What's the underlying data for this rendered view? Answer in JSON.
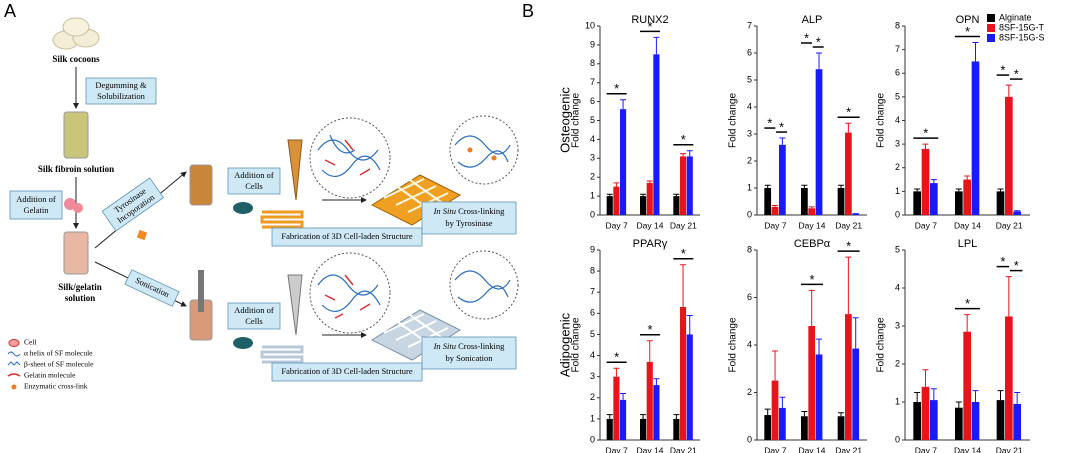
{
  "panel_a": {
    "label": "A",
    "cocoons": "Silk cocoons",
    "step_degum": [
      "Degumming &",
      "Solubilization"
    ],
    "fibroin": "Silk fibroin solution",
    "step_gelatin": [
      "Addition of",
      "Gelatin"
    ],
    "step_tyrosinase": [
      "Tyrosinase",
      "Incoporation"
    ],
    "silk_gelatin": [
      "Silk/gelatin",
      "solution"
    ],
    "step_sonication": "Sonication",
    "top_branch": {
      "add_cells": [
        "Addition of",
        "Cells"
      ],
      "fabrication": "Fabrication of 3D Cell-laden Structure",
      "crosslink_italic": "In Situ",
      "crosslink": "Cross-linking",
      "crosslink_by": "by Tyrosinase"
    },
    "bottom_branch": {
      "add_cells": [
        "Addition of",
        "Cells"
      ],
      "fabrication": "Fabrication of 3D Cell-laden Structure",
      "crosslink_italic": "In Situ",
      "crosslink": "Cross-linking",
      "crosslink_by": "by Sonication"
    },
    "legend": [
      "Cell",
      "α helix of SF molecule",
      "β-sheet of SF molecule",
      "Gelatin molecule",
      "Enzymatic cross-link"
    ]
  },
  "panel_b": {
    "label": "B",
    "row_labels": [
      "Osteogenic",
      "Adipogenic"
    ]
  },
  "chart_data": [
    {
      "type": "bar",
      "title": "RUNX2",
      "ylabel": "Fold change",
      "categories": [
        "Day 7",
        "Day 14",
        "Day 21"
      ],
      "ylim": [
        0,
        10
      ],
      "yticks": [
        0,
        1,
        2,
        3,
        4,
        5,
        6,
        7,
        8,
        9,
        10
      ],
      "series": [
        {
          "name": "Alginate",
          "color": "#000000",
          "values": [
            1,
            1,
            1
          ],
          "errors": [
            0.1,
            0.1,
            0.1
          ]
        },
        {
          "name": "8SF-15G-T",
          "color": "#e8141b",
          "values": [
            1.5,
            1.7,
            3.1
          ],
          "errors": [
            0.2,
            0.1,
            0.15
          ]
        },
        {
          "name": "8SF-15G-S",
          "color": "#1a1aff",
          "values": [
            5.6,
            8.5,
            3.1
          ],
          "errors": [
            0.5,
            0.9,
            0.3
          ]
        }
      ],
      "annotations": [
        [
          "*"
        ],
        [
          "*"
        ],
        [
          "*"
        ]
      ]
    },
    {
      "type": "bar",
      "title": "ALP",
      "ylabel": "Fold change",
      "categories": [
        "Day 7",
        "Day 14",
        "Day 21"
      ],
      "ylim": [
        0,
        7
      ],
      "yticks": [
        0,
        1,
        2,
        3,
        4,
        5,
        6,
        7
      ],
      "series": [
        {
          "name": "Alginate",
          "color": "#000000",
          "values": [
            1,
            1,
            1
          ],
          "errors": [
            0.1,
            0.1,
            0.1
          ]
        },
        {
          "name": "8SF-15G-T",
          "color": "#e8141b",
          "values": [
            0.3,
            0.25,
            3.05
          ],
          "errors": [
            0.05,
            0.05,
            0.35
          ]
        },
        {
          "name": "8SF-15G-S",
          "color": "#1a1aff",
          "values": [
            2.6,
            5.4,
            0.05
          ],
          "errors": [
            0.25,
            0.6,
            0
          ]
        }
      ],
      "annotations": [
        [
          "*",
          "*"
        ],
        [
          "*",
          "*"
        ],
        [
          "*"
        ]
      ]
    },
    {
      "type": "bar",
      "title": "OPN",
      "ylabel": "Fold change",
      "categories": [
        "Day 7",
        "Day 14",
        "Day 21"
      ],
      "ylim": [
        0,
        8
      ],
      "yticks": [
        0,
        1,
        2,
        3,
        4,
        5,
        6,
        7,
        8
      ],
      "series": [
        {
          "name": "Alginate",
          "color": "#000000",
          "values": [
            1,
            1,
            1
          ],
          "errors": [
            0.1,
            0.1,
            0.1
          ]
        },
        {
          "name": "8SF-15G-T",
          "color": "#e8141b",
          "values": [
            2.8,
            1.5,
            5.0
          ],
          "errors": [
            0.2,
            0.15,
            0.5
          ]
        },
        {
          "name": "8SF-15G-S",
          "color": "#1a1aff",
          "values": [
            1.35,
            6.5,
            0.15
          ],
          "errors": [
            0.15,
            0.8,
            0.03
          ]
        }
      ],
      "annotations": [
        [
          "*"
        ],
        [
          "*"
        ],
        [
          "*",
          "*"
        ]
      ]
    },
    {
      "type": "bar",
      "title": "PPARγ",
      "ylabel": "Fold change",
      "categories": [
        "Day 7",
        "Day 14",
        "Day 21"
      ],
      "ylim": [
        0,
        9
      ],
      "yticks": [
        0,
        1,
        2,
        3,
        4,
        5,
        6,
        7,
        8,
        9
      ],
      "series": [
        {
          "name": "Alginate",
          "color": "#000000",
          "values": [
            1,
            1,
            1
          ],
          "errors": [
            0.2,
            0.2,
            0.2
          ]
        },
        {
          "name": "8SF-15G-T",
          "color": "#e8141b",
          "values": [
            3.0,
            3.7,
            6.3
          ],
          "errors": [
            0.4,
            1.0,
            2.0
          ]
        },
        {
          "name": "8SF-15G-S",
          "color": "#1a1aff",
          "values": [
            1.9,
            2.6,
            5.0
          ],
          "errors": [
            0.3,
            0.3,
            0.9
          ]
        }
      ],
      "annotations": [
        [
          "*"
        ],
        [
          "*"
        ],
        [
          "*"
        ]
      ]
    },
    {
      "type": "bar",
      "title": "CEBPα",
      "ylabel": "Fold change",
      "categories": [
        "Day 7",
        "Day 14",
        "Day 21"
      ],
      "ylim": [
        0,
        8
      ],
      "yticks": [
        0,
        2,
        4,
        6,
        8
      ],
      "series": [
        {
          "name": "Alginate",
          "color": "#000000",
          "values": [
            1.05,
            1.0,
            1.0
          ],
          "errors": [
            0.25,
            0.2,
            0.15
          ]
        },
        {
          "name": "8SF-15G-T",
          "color": "#e8141b",
          "values": [
            2.5,
            4.8,
            5.3
          ],
          "errors": [
            1.25,
            1.5,
            2.4
          ]
        },
        {
          "name": "8SF-15G-S",
          "color": "#1a1aff",
          "values": [
            1.35,
            3.6,
            3.85
          ],
          "errors": [
            0.45,
            0.65,
            1.3
          ]
        }
      ],
      "annotations": [
        [],
        [
          "*"
        ],
        [
          "*"
        ]
      ]
    },
    {
      "type": "bar",
      "title": "LPL",
      "ylabel": "Fold change",
      "categories": [
        "Day 7",
        "Day 14",
        "Day 21"
      ],
      "ylim": [
        0,
        5
      ],
      "yticks": [
        0,
        1,
        2,
        3,
        4,
        5
      ],
      "series": [
        {
          "name": "Alginate",
          "color": "#000000",
          "values": [
            1.0,
            0.85,
            1.05
          ],
          "errors": [
            0.25,
            0.15,
            0.25
          ]
        },
        {
          "name": "8SF-15G-T",
          "color": "#e8141b",
          "values": [
            1.4,
            2.85,
            3.25
          ],
          "errors": [
            0.45,
            0.45,
            1.05
          ]
        },
        {
          "name": "8SF-15G-S",
          "color": "#1a1aff",
          "values": [
            1.05,
            1.0,
            0.95
          ],
          "errors": [
            0.3,
            0.3,
            0.3
          ]
        }
      ],
      "annotations": [
        [],
        [
          "*"
        ],
        [
          "*",
          "*"
        ]
      ]
    }
  ]
}
